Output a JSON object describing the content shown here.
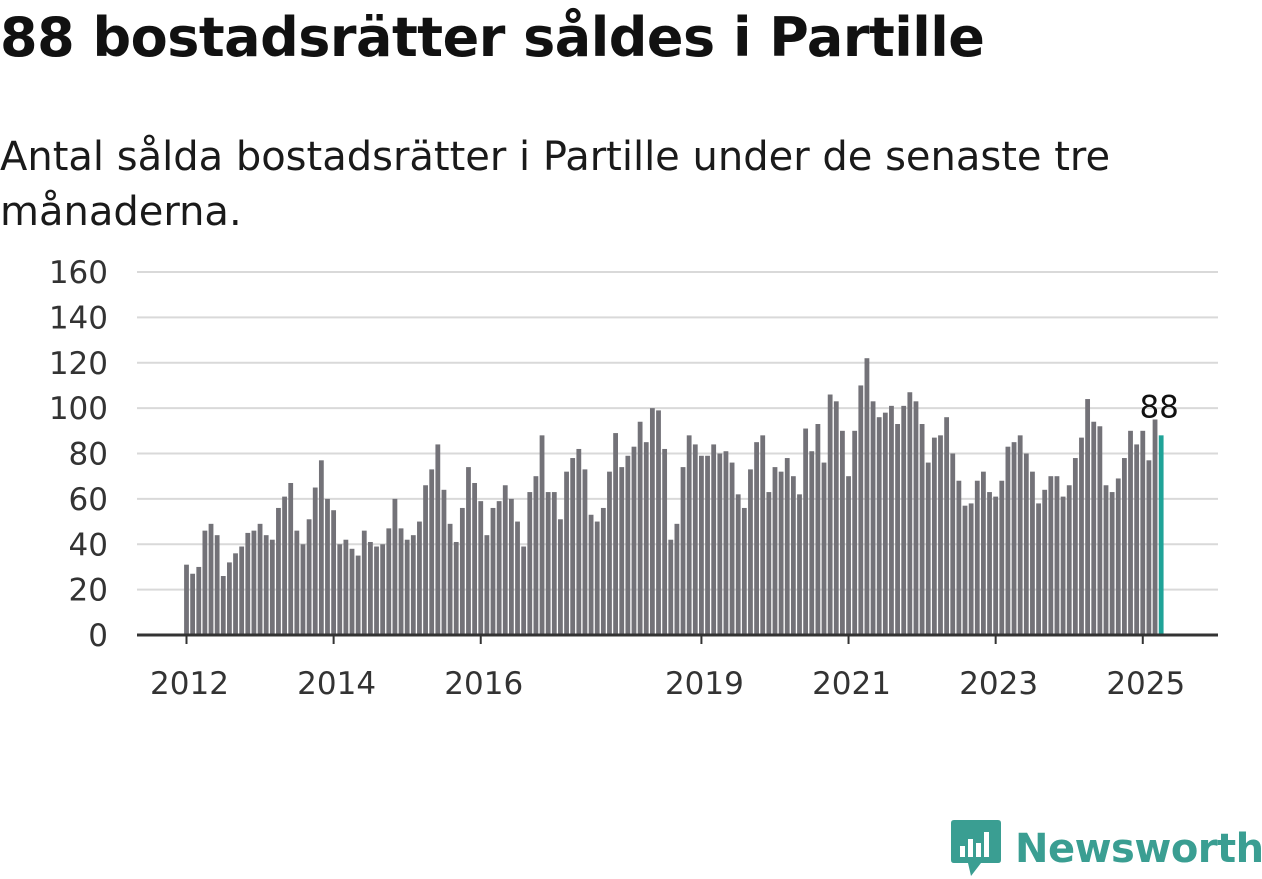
{
  "header": {
    "title": "88 bostadsrätter såldes i Partille",
    "subtitle": "Antal sålda bostadsrätter i Partille under de senaste tre månaderna."
  },
  "brand": {
    "name": "Newsworthy",
    "color": "#3a9e92"
  },
  "colors": {
    "bar": "#737278",
    "highlight": "#1fa398",
    "grid": "#d9d9d9",
    "axis": "#333333"
  },
  "chart_data": {
    "type": "bar",
    "ylim": [
      0,
      160
    ],
    "yticks": [
      0,
      20,
      40,
      60,
      80,
      100,
      120,
      140,
      160
    ],
    "xticks": [
      {
        "label": "2012",
        "index": 0
      },
      {
        "label": "2014",
        "index": 24
      },
      {
        "label": "2016",
        "index": 48
      },
      {
        "label": "2019",
        "index": 84
      },
      {
        "label": "2021",
        "index": 108
      },
      {
        "label": "2023",
        "index": 132
      },
      {
        "label": "2025",
        "index": 156
      }
    ],
    "first_month": "2012-01",
    "last_label": "88",
    "values": [
      31,
      27,
      30,
      46,
      49,
      44,
      26,
      32,
      36,
      39,
      45,
      46,
      49,
      44,
      42,
      56,
      61,
      67,
      46,
      40,
      51,
      65,
      77,
      60,
      55,
      40,
      42,
      38,
      35,
      46,
      41,
      39,
      40,
      47,
      60,
      47,
      42,
      44,
      50,
      66,
      73,
      84,
      64,
      49,
      41,
      56,
      74,
      67,
      59,
      44,
      56,
      59,
      66,
      60,
      50,
      39,
      63,
      70,
      88,
      63,
      63,
      51,
      72,
      78,
      82,
      73,
      53,
      50,
      56,
      72,
      89,
      74,
      79,
      83,
      94,
      85,
      100,
      99,
      82,
      42,
      49,
      74,
      88,
      84,
      79,
      79,
      84,
      80,
      81,
      76,
      62,
      56,
      73,
      85,
      88,
      63,
      74,
      72,
      78,
      70,
      62,
      91,
      81,
      93,
      76,
      106,
      103,
      90,
      70,
      90,
      110,
      122,
      103,
      96,
      98,
      101,
      93,
      101,
      107,
      103,
      93,
      76,
      87,
      88,
      96,
      80,
      68,
      57,
      58,
      68,
      72,
      63,
      61,
      68,
      83,
      85,
      88,
      80,
      72,
      58,
      64,
      70,
      70,
      61,
      66,
      78,
      87,
      104,
      94,
      92,
      66,
      63,
      69,
      78,
      90,
      84,
      90,
      77,
      95,
      88
    ]
  }
}
